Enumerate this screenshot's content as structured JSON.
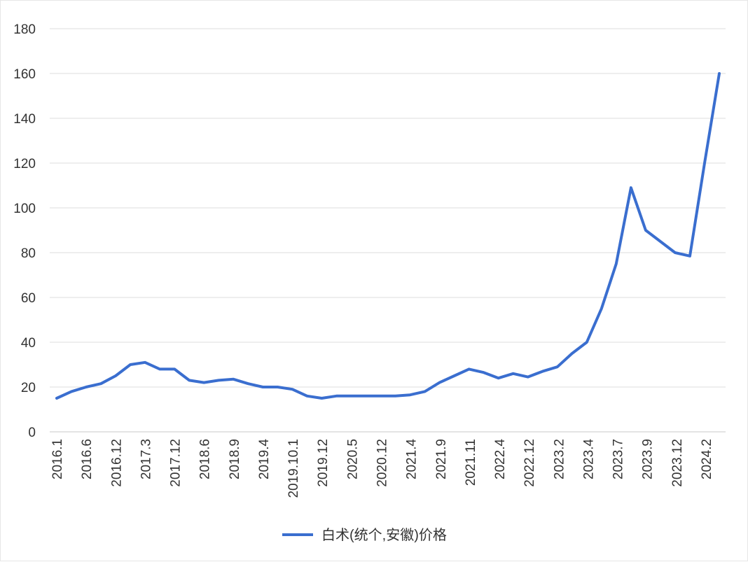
{
  "chart_data": {
    "type": "line",
    "title": "",
    "xlabel": "",
    "ylabel": "",
    "ylim": [
      0,
      180
    ],
    "yticks": [
      0,
      20,
      40,
      60,
      80,
      100,
      120,
      140,
      160,
      180
    ],
    "grid": true,
    "legend_position": "bottom",
    "x_tick_labels": [
      "2016.1",
      "2016.6",
      "2016.12",
      "2017.3",
      "2017.12",
      "2018.6",
      "2018.9",
      "2019.4",
      "2019.10.1",
      "2019.12",
      "2020.5",
      "2020.12",
      "2021.4",
      "2021.9",
      "2021.11",
      "2022.4",
      "2022.12",
      "2023.2",
      "2023.4",
      "2023.7",
      "2023.9",
      "2023.12",
      "2024.2"
    ],
    "series": [
      {
        "name": "白术(统个,安徽)价格",
        "color": "#3a6ecf",
        "values": [
          15,
          18,
          20,
          21.5,
          25,
          30,
          31,
          28,
          28,
          23,
          22,
          23,
          23.5,
          21.5,
          20,
          20,
          19,
          16,
          15,
          16,
          16,
          16,
          16,
          16,
          16.5,
          18,
          22,
          25,
          28,
          26.5,
          24,
          26,
          24.5,
          27,
          29,
          35,
          40,
          55,
          75,
          109,
          90,
          85,
          80,
          78.5,
          120,
          160
        ]
      }
    ]
  }
}
